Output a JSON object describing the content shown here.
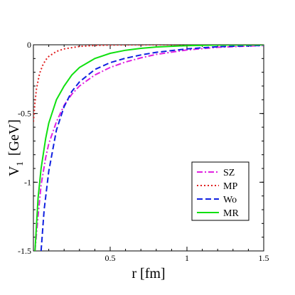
{
  "chart_data": {
    "type": "line",
    "title": "",
    "xlabel": "r [fm]",
    "ylabel_main": "V",
    "ylabel_sub": "1",
    "ylabel_unit": "[GeV]",
    "xlim": [
      0,
      1.5
    ],
    "ylim": [
      -1.5,
      0
    ],
    "xticks": [
      {
        "value": 0.5,
        "label": "0.5"
      },
      {
        "value": 1,
        "label": "1"
      },
      {
        "value": 1.5,
        "label": "1.5"
      }
    ],
    "yticks": [
      {
        "value": 0,
        "label": "0"
      },
      {
        "value": -0.5,
        "label": "-0.5"
      },
      {
        "value": -1,
        "label": "-1"
      },
      {
        "value": -1.5,
        "label": "-1.5"
      }
    ],
    "grid": false,
    "legend_position": "bottom-right",
    "series": [
      {
        "name": "SZ",
        "color": "#e020e0",
        "dash": "dashdot",
        "x": [
          0.01,
          0.03,
          0.05,
          0.08,
          0.1,
          0.15,
          0.2,
          0.25,
          0.3,
          0.4,
          0.5,
          0.6,
          0.7,
          0.8,
          1.0,
          1.2,
          1.5
        ],
        "y": [
          -1.5,
          -1.25,
          -1.02,
          -0.82,
          -0.72,
          -0.56,
          -0.44,
          -0.36,
          -0.3,
          -0.22,
          -0.165,
          -0.125,
          -0.095,
          -0.07,
          -0.038,
          -0.018,
          -0.005
        ]
      },
      {
        "name": "MP",
        "color": "#e02020",
        "dash": "dotted",
        "x": [
          0.0,
          0.01,
          0.02,
          0.04,
          0.06,
          0.08,
          0.1,
          0.15,
          0.2,
          0.3,
          0.4,
          0.5,
          0.6,
          0.8,
          1.0,
          1.5
        ],
        "y": [
          -0.56,
          -0.42,
          -0.32,
          -0.21,
          -0.15,
          -0.11,
          -0.085,
          -0.048,
          -0.03,
          -0.012,
          -0.005,
          -0.002,
          -0.001,
          0,
          0,
          0
        ]
      },
      {
        "name": "Wo",
        "color": "#1020e0",
        "dash": "dashed",
        "x": [
          0.05,
          0.07,
          0.1,
          0.15,
          0.2,
          0.25,
          0.3,
          0.4,
          0.5,
          0.6,
          0.7,
          0.8,
          1.0,
          1.2,
          1.5
        ],
        "y": [
          -1.5,
          -1.2,
          -0.92,
          -0.62,
          -0.45,
          -0.34,
          -0.27,
          -0.18,
          -0.13,
          -0.098,
          -0.074,
          -0.055,
          -0.03,
          -0.014,
          -0.004
        ]
      },
      {
        "name": "MR",
        "color": "#10e010",
        "dash": "solid",
        "x": [
          0.01,
          0.03,
          0.05,
          0.08,
          0.1,
          0.15,
          0.2,
          0.25,
          0.3,
          0.4,
          0.5,
          0.6,
          0.7,
          0.8,
          1.0,
          1.2,
          1.5
        ],
        "y": [
          -1.5,
          -1.12,
          -0.9,
          -0.68,
          -0.57,
          -0.4,
          -0.3,
          -0.22,
          -0.165,
          -0.1,
          -0.062,
          -0.04,
          -0.026,
          -0.016,
          -0.006,
          -0.002,
          0
        ]
      }
    ]
  }
}
